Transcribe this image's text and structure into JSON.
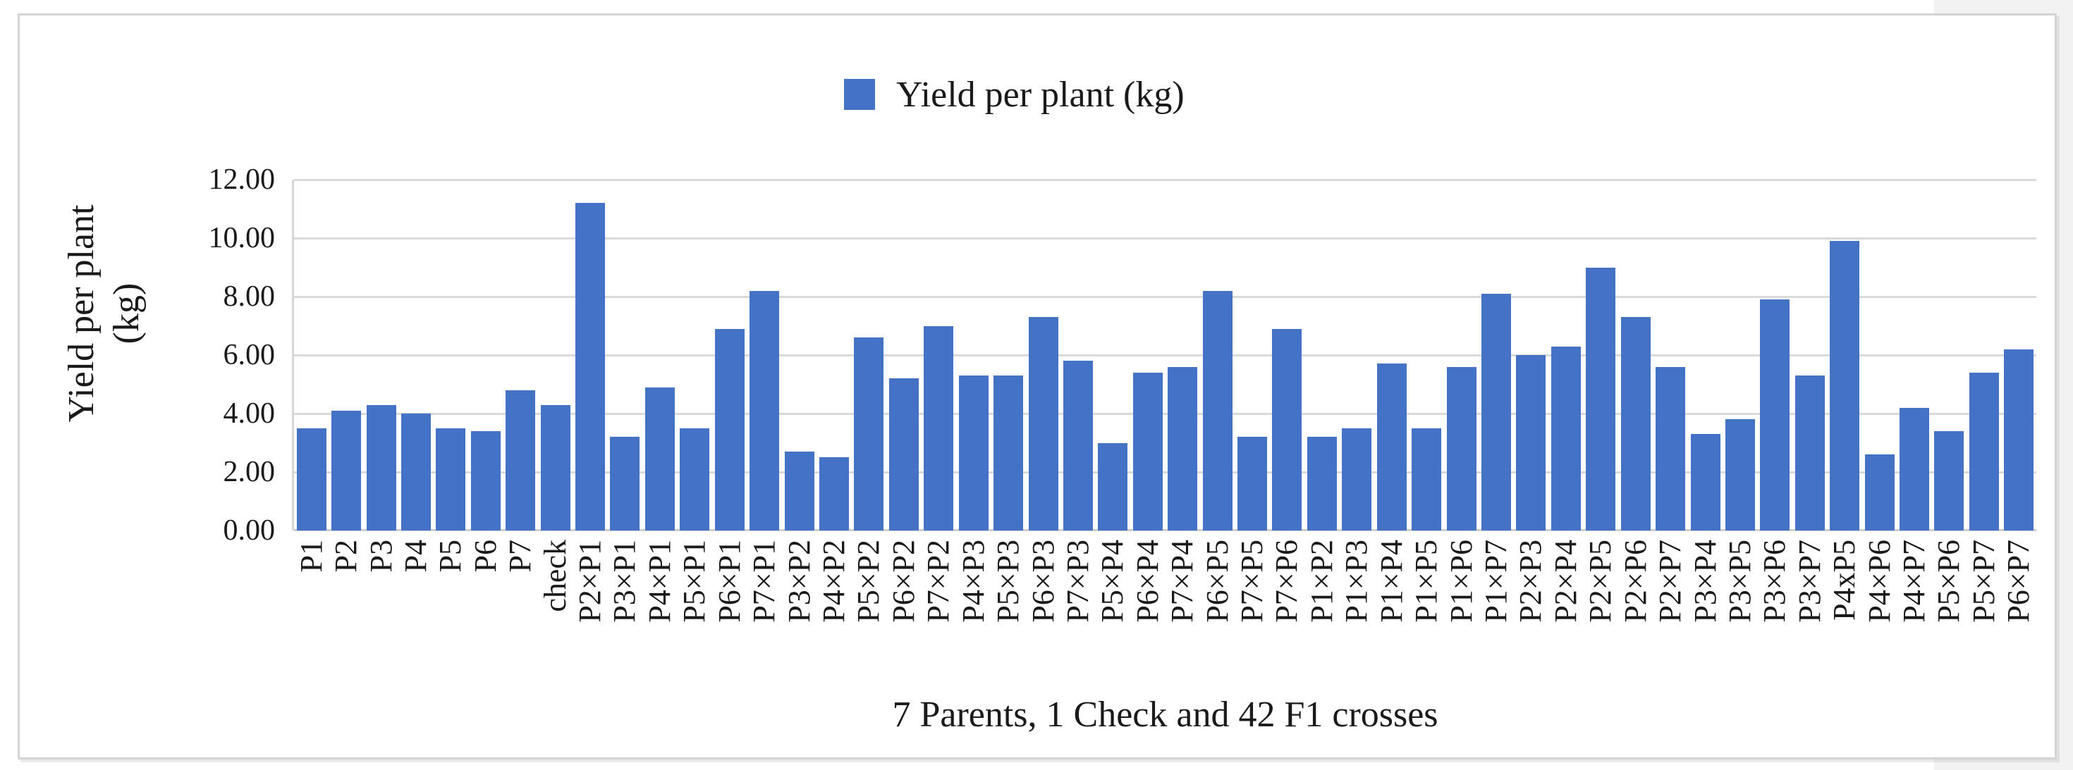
{
  "chart_data": {
    "type": "bar",
    "title": "",
    "legend_label": "Yield per plant (kg)",
    "legend_position": "top",
    "xlabel": "7 Parents, 1 Check and 42 F1 crosses",
    "ylabel_line1": "Yield per plant",
    "ylabel_line2": "(kg)",
    "ylim": [
      0,
      12
    ],
    "ytick_labels": [
      "0.00",
      "2.00",
      "4.00",
      "6.00",
      "8.00",
      "10.00",
      "12.00"
    ],
    "grid": true,
    "bar_color": "#4472C4",
    "categories": [
      "P1",
      "P2",
      "P3",
      "P4",
      "P5",
      "P6",
      "P7",
      "check",
      "P2×P1",
      "P3×P1",
      "P4×P1",
      "P5×P1",
      "P6×P1",
      "P7×P1",
      "P3×P2",
      "P4×P2",
      "P5×P2",
      "P6×P2",
      "P7×P2",
      "P4×P3",
      "P5×P3",
      "P6×P3",
      "P7×P3",
      "P5×P4",
      "P6×P4",
      "P7×P4",
      "P6×P5",
      "P7×P5",
      "P7×P6",
      "P1×P2",
      "P1×P3",
      "P1×P4",
      "P1×P5",
      "P1×P6",
      "P1×P7",
      "P2×P3",
      "P2×P4",
      "P2×P5",
      "P2×P6",
      "P2×P7",
      "P3×P4",
      "P3×P5",
      "P3×P6",
      "P3×P7",
      "P4xP5",
      "P4×P6",
      "P4×P7",
      "P5×P6",
      "P5×P7",
      "P6×P7"
    ],
    "values": [
      3.5,
      4.1,
      4.3,
      4.0,
      3.5,
      3.4,
      4.8,
      4.3,
      11.2,
      3.2,
      4.9,
      3.5,
      6.9,
      8.2,
      2.7,
      2.5,
      6.6,
      5.2,
      7.0,
      5.3,
      5.3,
      7.3,
      5.8,
      3.0,
      5.4,
      5.6,
      8.2,
      3.2,
      6.9,
      3.2,
      3.5,
      5.7,
      3.5,
      5.6,
      8.1,
      6.0,
      6.3,
      9.0,
      7.3,
      5.6,
      3.3,
      3.8,
      7.9,
      5.3,
      9.9,
      2.6,
      4.2,
      3.4,
      5.4,
      6.2
    ]
  },
  "colors": {
    "bar": "#4472C4",
    "gridline": "#dadada",
    "axis": "#cfcfcf",
    "frame_border": "#d4d4d4",
    "page_margin": "#f2f2f2",
    "text": "#1a1a1a"
  }
}
